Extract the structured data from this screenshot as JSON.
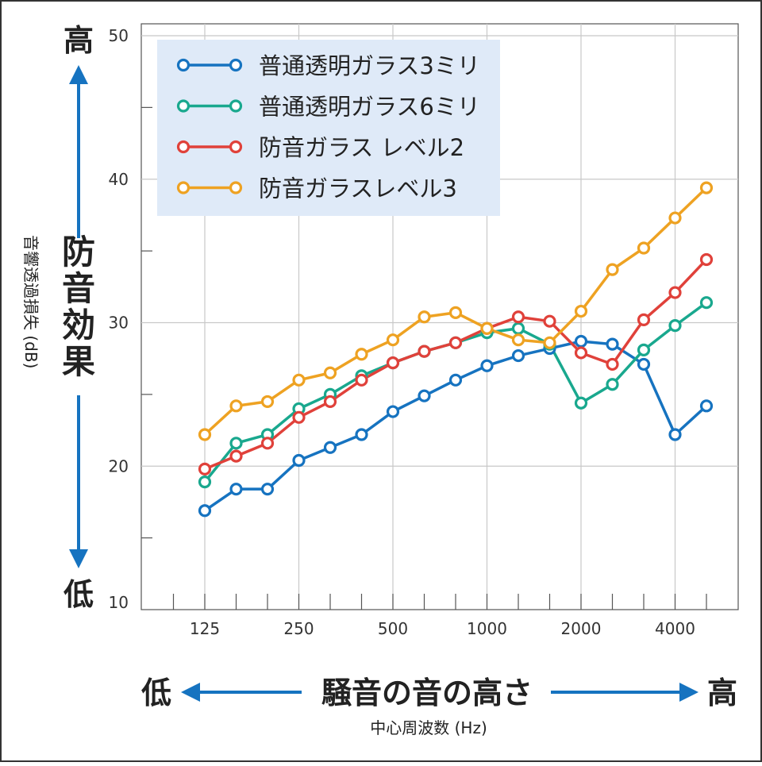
{
  "annotations": {
    "y_high": "高",
    "y_low": "低",
    "y_effect": "防音効果",
    "x_high": "高",
    "x_low": "低",
    "x_title": "騒音の音の高さ"
  },
  "colors": {
    "arrow": "#1673c0",
    "grid": "#c8c8c8",
    "frame": "#333333",
    "legend_bg": "#dfeaf8"
  },
  "chart_data": {
    "type": "line",
    "xlabel": "中心周波数 (Hz)",
    "ylabel": "音響透過損失 (dB)",
    "ylim": [
      10,
      50
    ],
    "y_ticks": [
      10,
      20,
      30,
      40,
      50
    ],
    "x_tick_labels": [
      "125",
      "250",
      "500",
      "1000",
      "2000",
      "4000"
    ],
    "x": [
      "125",
      "160",
      "200",
      "250",
      "315",
      "400",
      "500",
      "630",
      "800",
      "1000",
      "1250",
      "1600",
      "2000",
      "2500",
      "3150",
      "4000",
      "5000"
    ],
    "grid": true,
    "legend_position": "top-left",
    "series": [
      {
        "name": "普通透明ガラス3ミリ",
        "color": "#1673c0",
        "values": [
          16.9,
          18.4,
          18.4,
          20.4,
          21.3,
          22.2,
          23.8,
          24.9,
          26.0,
          27.0,
          27.7,
          28.2,
          28.7,
          28.5,
          27.1,
          22.2,
          24.2
        ]
      },
      {
        "name": "普通透明ガラス6ミリ",
        "color": "#19a88e",
        "values": [
          18.9,
          21.6,
          22.2,
          24.0,
          25.0,
          26.3,
          27.2,
          28.0,
          28.6,
          29.3,
          29.6,
          28.5,
          24.4,
          25.7,
          28.1,
          29.8,
          31.4
        ]
      },
      {
        "name": "防音ガラス レベル2",
        "color": "#e0413a",
        "values": [
          19.8,
          20.7,
          21.6,
          23.4,
          24.5,
          26.0,
          27.2,
          28.0,
          28.6,
          29.6,
          30.4,
          30.1,
          27.9,
          27.1,
          30.2,
          32.1,
          34.4
        ]
      },
      {
        "name": "防音ガラスレベル3",
        "color": "#eea222",
        "values": [
          22.2,
          24.2,
          24.5,
          26.0,
          26.5,
          27.8,
          28.8,
          30.4,
          30.7,
          29.6,
          28.8,
          28.6,
          30.8,
          33.7,
          35.2,
          37.3,
          39.4
        ]
      }
    ]
  }
}
